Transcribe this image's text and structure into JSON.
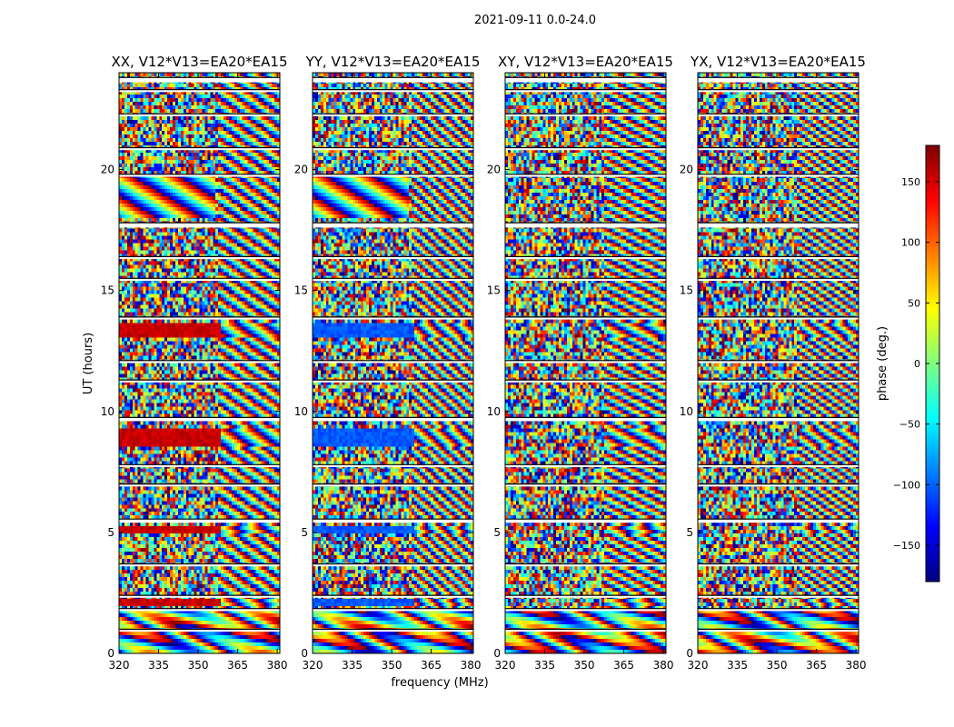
{
  "figure": {
    "suptitle": "2021-09-11 0.0-24.0",
    "ylabel": "UT (hours)",
    "xlabel": "frequency (MHz)"
  },
  "chart_data": {
    "type": "heatmap",
    "title": "2021-09-11 0.0-24.0",
    "xlabel": "frequency (MHz)",
    "ylabel": "UT (hours)",
    "xlim": [
      320,
      381
    ],
    "ylim": [
      0,
      24
    ],
    "xticks": [
      320,
      335,
      350,
      365,
      380
    ],
    "xtick_labels": [
      "320",
      "335",
      "350",
      "365",
      "380"
    ],
    "yticks": [
      0,
      5,
      10,
      15,
      20
    ],
    "ytick_labels": [
      "0",
      "5",
      "10",
      "15",
      "20"
    ],
    "panels": [
      {
        "title": "XX, V12*V13=EA20*EA15",
        "polarization": "XX",
        "baseline": "V12*V13=EA20*EA15"
      },
      {
        "title": "YY, V12*V13=EA20*EA15",
        "polarization": "YY",
        "baseline": "V12*V13=EA20*EA15"
      },
      {
        "title": "XY, V12*V13=EA20*EA15",
        "polarization": "XY",
        "baseline": "V12*V13=EA20*EA15"
      },
      {
        "title": "YX, V12*V13=EA20*EA15",
        "polarization": "YX",
        "baseline": "V12*V13=EA20*EA15"
      }
    ],
    "flagged_bands_hours": [
      [
        0.9,
        1.0
      ],
      [
        1.75,
        1.85
      ],
      [
        2.3,
        2.4
      ],
      [
        3.6,
        3.7
      ],
      [
        5.4,
        5.55
      ],
      [
        6.9,
        7.0
      ],
      [
        7.7,
        7.8
      ],
      [
        9.6,
        9.75
      ],
      [
        11.2,
        11.3
      ],
      [
        12.0,
        12.1
      ],
      [
        13.8,
        13.9
      ],
      [
        15.4,
        15.5
      ],
      [
        16.3,
        16.4
      ],
      [
        17.6,
        17.8
      ],
      [
        19.7,
        19.8
      ],
      [
        20.8,
        20.9
      ],
      [
        22.2,
        22.3
      ],
      [
        23.2,
        23.3
      ],
      [
        23.6,
        23.8
      ]
    ],
    "colorbar": {
      "label": "phase (deg.)",
      "range": [
        -180,
        180
      ],
      "ticks": [
        150,
        100,
        50,
        0,
        -50,
        -100,
        -150
      ],
      "tick_labels": [
        "150",
        "100",
        "50",
        "0",
        "−50",
        "−100",
        "−150"
      ],
      "colormap": "jet",
      "stops": [
        "#00007f",
        "#0000ff",
        "#007fff",
        "#00ffff",
        "#7fff7f",
        "#ffff00",
        "#ff7f00",
        "#ff0000",
        "#7f0000"
      ]
    }
  }
}
